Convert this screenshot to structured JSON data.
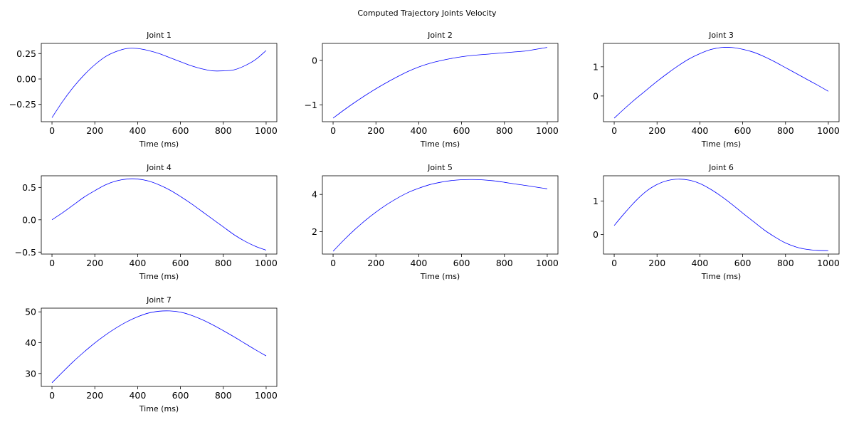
{
  "figure": {
    "suptitle": "Computed Trajectory Joints Velocity",
    "line_color": "#0000ff"
  },
  "chart_data": [
    {
      "type": "line",
      "title": "Joint 1",
      "xlabel": "Time (ms)",
      "ylabel": "",
      "xlim": [
        -50,
        1050
      ],
      "ylim": [
        -0.42,
        0.35
      ],
      "xticks": [
        0,
        200,
        400,
        600,
        800,
        1000
      ],
      "yticks": [
        -0.25,
        0.0,
        0.25
      ],
      "ytick_labels": [
        "−0.25",
        "0.00",
        "0.25"
      ],
      "grid": false,
      "x": [
        0,
        50,
        100,
        150,
        200,
        250,
        300,
        350,
        400,
        450,
        500,
        550,
        600,
        650,
        700,
        750,
        800,
        850,
        900,
        950,
        1000
      ],
      "y": [
        -0.38,
        -0.22,
        -0.08,
        0.04,
        0.14,
        0.22,
        0.27,
        0.3,
        0.3,
        0.28,
        0.25,
        0.21,
        0.17,
        0.13,
        0.1,
        0.08,
        0.08,
        0.09,
        0.13,
        0.19,
        0.28
      ]
    },
    {
      "type": "line",
      "title": "Joint 2",
      "xlabel": "Time (ms)",
      "ylabel": "",
      "xlim": [
        -50,
        1050
      ],
      "ylim": [
        -1.38,
        0.38
      ],
      "xticks": [
        0,
        200,
        400,
        600,
        800,
        1000
      ],
      "yticks": [
        -1,
        0
      ],
      "ytick_labels": [
        "−1",
        "0"
      ],
      "grid": false,
      "x": [
        0,
        50,
        100,
        150,
        200,
        250,
        300,
        350,
        400,
        450,
        500,
        550,
        600,
        650,
        700,
        750,
        800,
        850,
        900,
        950,
        1000
      ],
      "y": [
        -1.3,
        -1.12,
        -0.95,
        -0.79,
        -0.64,
        -0.5,
        -0.37,
        -0.25,
        -0.15,
        -0.07,
        -0.01,
        0.04,
        0.08,
        0.11,
        0.13,
        0.15,
        0.17,
        0.19,
        0.21,
        0.25,
        0.29
      ]
    },
    {
      "type": "line",
      "title": "Joint 3",
      "xlabel": "Time (ms)",
      "ylabel": "",
      "xlim": [
        -50,
        1050
      ],
      "ylim": [
        -0.88,
        1.8
      ],
      "xticks": [
        0,
        200,
        400,
        600,
        800,
        1000
      ],
      "yticks": [
        0,
        1
      ],
      "ytick_labels": [
        "0",
        "1"
      ],
      "grid": false,
      "x": [
        0,
        50,
        100,
        150,
        200,
        250,
        300,
        350,
        400,
        450,
        500,
        550,
        600,
        650,
        700,
        750,
        800,
        850,
        900,
        950,
        1000
      ],
      "y": [
        -0.76,
        -0.42,
        -0.1,
        0.2,
        0.5,
        0.78,
        1.04,
        1.27,
        1.45,
        1.59,
        1.66,
        1.66,
        1.6,
        1.5,
        1.35,
        1.17,
        0.97,
        0.77,
        0.57,
        0.37,
        0.16
      ]
    },
    {
      "type": "line",
      "title": "Joint 4",
      "xlabel": "Time (ms)",
      "ylabel": "",
      "xlim": [
        -50,
        1050
      ],
      "ylim": [
        -0.53,
        0.68
      ],
      "xticks": [
        0,
        200,
        400,
        600,
        800,
        1000
      ],
      "yticks": [
        -0.5,
        0.0,
        0.5
      ],
      "ytick_labels": [
        "−0.5",
        "0.0",
        "0.5"
      ],
      "grid": false,
      "x": [
        0,
        50,
        100,
        150,
        200,
        250,
        300,
        350,
        400,
        450,
        500,
        550,
        600,
        650,
        700,
        750,
        800,
        850,
        900,
        950,
        1000
      ],
      "y": [
        0.0,
        0.11,
        0.23,
        0.35,
        0.45,
        0.54,
        0.6,
        0.63,
        0.63,
        0.6,
        0.54,
        0.46,
        0.36,
        0.25,
        0.13,
        0.01,
        -0.11,
        -0.23,
        -0.33,
        -0.41,
        -0.47
      ]
    },
    {
      "type": "line",
      "title": "Joint 5",
      "xlabel": "Time (ms)",
      "ylabel": "",
      "xlim": [
        -50,
        1050
      ],
      "ylim": [
        0.8,
        5.0
      ],
      "xticks": [
        0,
        200,
        400,
        600,
        800,
        1000
      ],
      "yticks": [
        2,
        4
      ],
      "ytick_labels": [
        "2",
        "4"
      ],
      "grid": false,
      "x": [
        0,
        50,
        100,
        150,
        200,
        250,
        300,
        350,
        400,
        450,
        500,
        550,
        600,
        650,
        700,
        750,
        800,
        850,
        900,
        950,
        1000
      ],
      "y": [
        0.95,
        1.55,
        2.1,
        2.6,
        3.05,
        3.45,
        3.8,
        4.1,
        4.33,
        4.52,
        4.65,
        4.74,
        4.79,
        4.8,
        4.78,
        4.73,
        4.65,
        4.56,
        4.48,
        4.39,
        4.3
      ]
    },
    {
      "type": "line",
      "title": "Joint 6",
      "xlabel": "Time (ms)",
      "ylabel": "",
      "xlim": [
        -50,
        1050
      ],
      "ylim": [
        -0.58,
        1.75
      ],
      "xticks": [
        0,
        200,
        400,
        600,
        800,
        1000
      ],
      "yticks": [
        0,
        1
      ],
      "ytick_labels": [
        "0",
        "1"
      ],
      "grid": false,
      "x": [
        0,
        50,
        100,
        150,
        200,
        250,
        300,
        350,
        400,
        450,
        500,
        550,
        600,
        650,
        700,
        750,
        800,
        850,
        900,
        950,
        1000
      ],
      "y": [
        0.27,
        0.65,
        1.0,
        1.29,
        1.49,
        1.61,
        1.65,
        1.62,
        1.52,
        1.35,
        1.14,
        0.9,
        0.64,
        0.39,
        0.14,
        -0.07,
        -0.25,
        -0.37,
        -0.44,
        -0.47,
        -0.48
      ]
    },
    {
      "type": "line",
      "title": "Joint 7",
      "xlabel": "Time (ms)",
      "ylabel": "",
      "xlim": [
        -50,
        1050
      ],
      "ylim": [
        25.8,
        51.2
      ],
      "xticks": [
        0,
        200,
        400,
        600,
        800,
        1000
      ],
      "yticks": [
        30,
        40,
        50
      ],
      "ytick_labels": [
        "30",
        "40",
        "50"
      ],
      "grid": false,
      "x": [
        0,
        50,
        100,
        150,
        200,
        250,
        300,
        350,
        400,
        450,
        500,
        550,
        600,
        650,
        700,
        750,
        800,
        850,
        900,
        950,
        1000
      ],
      "y": [
        27.0,
        30.5,
        33.9,
        37.0,
        39.9,
        42.5,
        44.8,
        46.8,
        48.4,
        49.6,
        50.2,
        50.3,
        49.9,
        48.9,
        47.5,
        45.8,
        43.9,
        41.9,
        39.8,
        37.7,
        35.7
      ]
    }
  ]
}
